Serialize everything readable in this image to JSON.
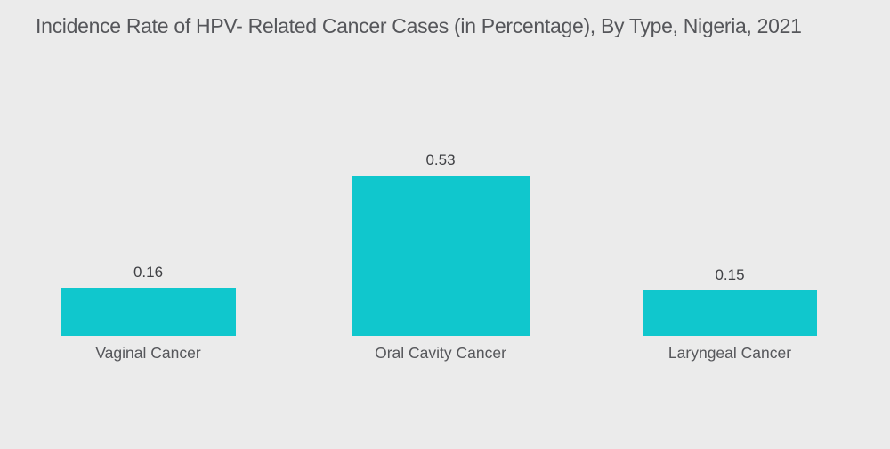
{
  "chart_data": {
    "type": "bar",
    "title": "Incidence Rate of HPV- Related Cancer Cases (in Percentage), By Type, Nigeria, 2021",
    "categories": [
      "Vaginal Cancer",
      "Oral Cavity Cancer",
      "Laryngeal Cancer"
    ],
    "values": [
      0.16,
      0.53,
      0.15
    ],
    "value_labels": [
      "0.16",
      "0.53",
      "0.15"
    ],
    "ylabel": "",
    "xlabel": "",
    "ylim": [
      0,
      0.53
    ],
    "grid": false,
    "legend": false,
    "orientation": "vertical",
    "bar_color": "#10C7CD",
    "background_color": "#EBEBEB",
    "title_color": "#55565A",
    "value_label_color": "#3F4044",
    "category_label_color": "#56575B"
  }
}
